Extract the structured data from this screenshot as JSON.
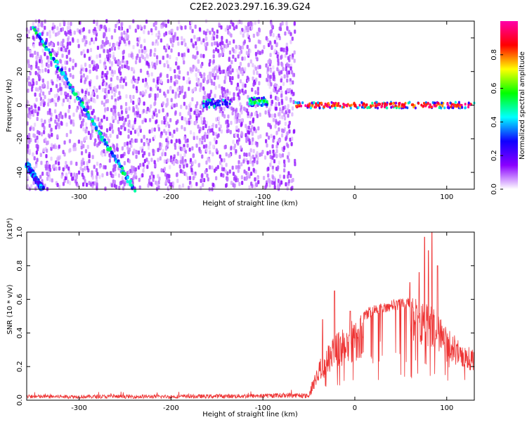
{
  "title": "C2E2.2023.297.16.39.G24",
  "chart_data": [
    {
      "type": "heatmap",
      "xlabel": "Height of straight line (km)",
      "ylabel": "Frequency (Hz)",
      "xlim": [
        -357,
        130
      ],
      "ylim": [
        -50,
        50
      ],
      "xticks": [
        -300,
        -200,
        -100,
        0,
        100
      ],
      "yticks": [
        -40,
        -20,
        0,
        20,
        40
      ],
      "noise_region_x": [
        -357,
        -65
      ],
      "sparse_gap_x": [
        -103,
        -97
      ],
      "clean_region_x": [
        -65,
        130
      ],
      "features": [
        {
          "name": "diagonal track",
          "x_start": -350,
          "y_start": 47,
          "x_end": -240,
          "y_end": -50,
          "amplitude": 0.5
        },
        {
          "name": "secondary diagonal",
          "x_start": -357,
          "y_start": -35,
          "x_end": -340,
          "y_end": -50,
          "amplitude": 0.4
        },
        {
          "name": "signal cluster",
          "x_range": [
            -165,
            -135
          ],
          "y_center": 1,
          "amplitude": 0.3
        },
        {
          "name": "signal cluster",
          "x_range": [
            -115,
            -95
          ],
          "y_center": 2,
          "amplitude": 0.55
        },
        {
          "name": "carrier band",
          "x_range": [
            -65,
            130
          ],
          "y_center": 0,
          "amplitude": 0.95
        }
      ],
      "colorbar": {
        "label": "Normalized spectral amplitude",
        "ticks": [
          0.0,
          0.2,
          0.4,
          0.6,
          0.8
        ],
        "range": [
          0,
          1
        ],
        "colormap": [
          "#ffffff",
          "#8a00ff",
          "#1000ff",
          "#00ffff",
          "#00ff00",
          "#ffff00",
          "#ff0000",
          "#ff00aa"
        ]
      }
    },
    {
      "type": "line",
      "xlabel": "Height of straight line (km)",
      "ylabel": "SNR (10 * v/v)",
      "yscale_label": "(x10⁴)",
      "xlim": [
        -357,
        130
      ],
      "ylim": [
        0,
        1
      ],
      "xticks": [
        -300,
        -200,
        -100,
        0,
        100
      ],
      "yticks": [
        0.0,
        0.2,
        0.4,
        0.6,
        0.8,
        1.0
      ],
      "series": [
        {
          "color": "#ee3333",
          "envelope_x": [
            -357,
            -300,
            -200,
            -100,
            -70,
            -50,
            -40,
            -30,
            -20,
            -10,
            0,
            20,
            40,
            60,
            70,
            80,
            90,
            100,
            110,
            120,
            130
          ],
          "envelope_y": [
            0.025,
            0.025,
            0.025,
            0.03,
            0.035,
            0.03,
            0.22,
            0.33,
            0.4,
            0.45,
            0.5,
            0.57,
            0.6,
            0.61,
            0.6,
            0.58,
            0.52,
            0.45,
            0.38,
            0.33,
            0.3
          ],
          "peaks": [
            {
              "x": -35,
              "y": 0.48
            },
            {
              "x": -22,
              "y": 0.65
            },
            {
              "x": -5,
              "y": 0.53
            },
            {
              "x": 60,
              "y": 0.7
            },
            {
              "x": 70,
              "y": 0.76
            },
            {
              "x": 76,
              "y": 0.97
            },
            {
              "x": 80,
              "y": 0.89
            },
            {
              "x": 84,
              "y": 1.0
            },
            {
              "x": 90,
              "y": 0.8
            }
          ]
        }
      ]
    }
  ]
}
